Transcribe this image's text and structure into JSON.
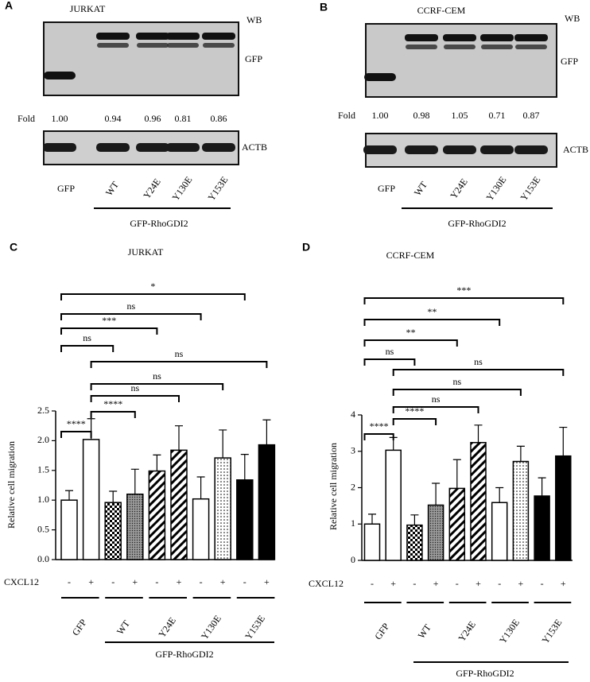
{
  "panels": [
    {
      "label": "A",
      "title": "JURKAT",
      "wb": "WB",
      "band": "GFP",
      "fold_label": "Fold",
      "folds": [
        "1.00",
        "0.94",
        "0.96",
        "0.81",
        "0.86"
      ],
      "loading": "ACTB",
      "lanes": [
        "GFP",
        "WT",
        "Y24E",
        "Y130E",
        "Y153E"
      ],
      "group": "GFP-RhoGDI2"
    },
    {
      "label": "B",
      "title": "CCRF-CEM",
      "wb": "WB",
      "band": "GFP",
      "fold_label": "Fold",
      "folds": [
        "1.00",
        "0.98",
        "1.05",
        "0.71",
        "0.87"
      ],
      "loading": "ACTB",
      "lanes": [
        "GFP",
        "WT",
        "Y24E",
        "Y130E",
        "Y153E"
      ],
      "group": "GFP-RhoGDI2"
    }
  ],
  "chart_data": [
    {
      "type": "bar",
      "panel": "C",
      "title": "JURKAT",
      "y_label": "Relative cell migration",
      "row_label": "CXCL12",
      "categories": [
        "-",
        "+",
        "-",
        "+",
        "-",
        "+",
        "-",
        "+",
        "-",
        "+"
      ],
      "groups": [
        "GFP",
        "WT",
        "Y24E",
        "Y130E",
        "Y153E"
      ],
      "group_label": "GFP-RhoGDI2",
      "values": [
        1.0,
        2.02,
        0.96,
        1.1,
        1.49,
        1.84,
        1.02,
        1.71,
        1.34,
        1.93
      ],
      "errors": [
        0.16,
        0.35,
        0.19,
        0.42,
        0.27,
        0.41,
        0.37,
        0.47,
        0.43,
        0.42
      ],
      "patterns": [
        "white",
        "white",
        "checker",
        "dots-dense",
        "stripes",
        "stripes",
        "white",
        "dots",
        "black",
        "black"
      ],
      "ylim": [
        0,
        2.5
      ],
      "yticks": [
        {
          "value": 0,
          "label": "0.0"
        },
        {
          "value": 0.5,
          "label": "0.5"
        },
        {
          "value": 1,
          "label": "1.0"
        },
        {
          "value": 1.5,
          "label": "1.5"
        },
        {
          "value": 2,
          "label": "2.0"
        },
        {
          "value": 2.5,
          "label": "2.5"
        }
      ],
      "comparisons": [
        {
          "bars": [
            0,
            8
          ],
          "label": "*"
        },
        {
          "bars": [
            0,
            6
          ],
          "label": "ns"
        },
        {
          "bars": [
            0,
            4
          ],
          "label": "***"
        },
        {
          "bars": [
            0,
            2
          ],
          "label": "ns"
        },
        {
          "bars": [
            1,
            9
          ],
          "label": "ns"
        },
        {
          "bars": [
            1,
            7
          ],
          "label": "ns"
        },
        {
          "bars": [
            1,
            5
          ],
          "label": "ns"
        },
        {
          "bars": [
            1,
            3
          ],
          "label": "****"
        },
        {
          "bars": [
            0,
            1
          ],
          "label": "****"
        }
      ]
    },
    {
      "type": "bar",
      "panel": "D",
      "title": "CCRF-CEM",
      "y_label": "Relative cell migration",
      "row_label": "CXCL12",
      "categories": [
        "-",
        "+",
        "-",
        "+",
        "-",
        "+",
        "-",
        "+",
        "-",
        "+"
      ],
      "groups": [
        "GFP",
        "WT",
        "Y24E",
        "Y130E",
        "Y153E"
      ],
      "group_label": "GFP-RhoGDI2",
      "values": [
        1.0,
        3.03,
        0.97,
        1.52,
        1.98,
        3.24,
        1.59,
        2.72,
        1.77,
        2.87
      ],
      "errors": [
        0.27,
        0.35,
        0.28,
        0.6,
        0.79,
        0.48,
        0.41,
        0.42,
        0.5,
        0.79
      ],
      "patterns": [
        "white",
        "white",
        "checker",
        "dots-dense",
        "stripes",
        "stripes",
        "white",
        "dots",
        "black",
        "black"
      ],
      "ylim": [
        0,
        4
      ],
      "yticks": [
        0,
        1,
        2,
        3,
        4
      ],
      "comparisons": [
        {
          "bars": [
            0,
            9
          ],
          "label": "***"
        },
        {
          "bars": [
            0,
            6
          ],
          "label": "**"
        },
        {
          "bars": [
            0,
            4
          ],
          "label": "**"
        },
        {
          "bars": [
            0,
            2
          ],
          "label": "ns"
        },
        {
          "bars": [
            1,
            9
          ],
          "label": "ns"
        },
        {
          "bars": [
            1,
            7
          ],
          "label": "ns"
        },
        {
          "bars": [
            1,
            5
          ],
          "label": "ns"
        },
        {
          "bars": [
            1,
            3
          ],
          "label": "****"
        },
        {
          "bars": [
            0,
            1
          ],
          "label": "****"
        }
      ]
    }
  ]
}
